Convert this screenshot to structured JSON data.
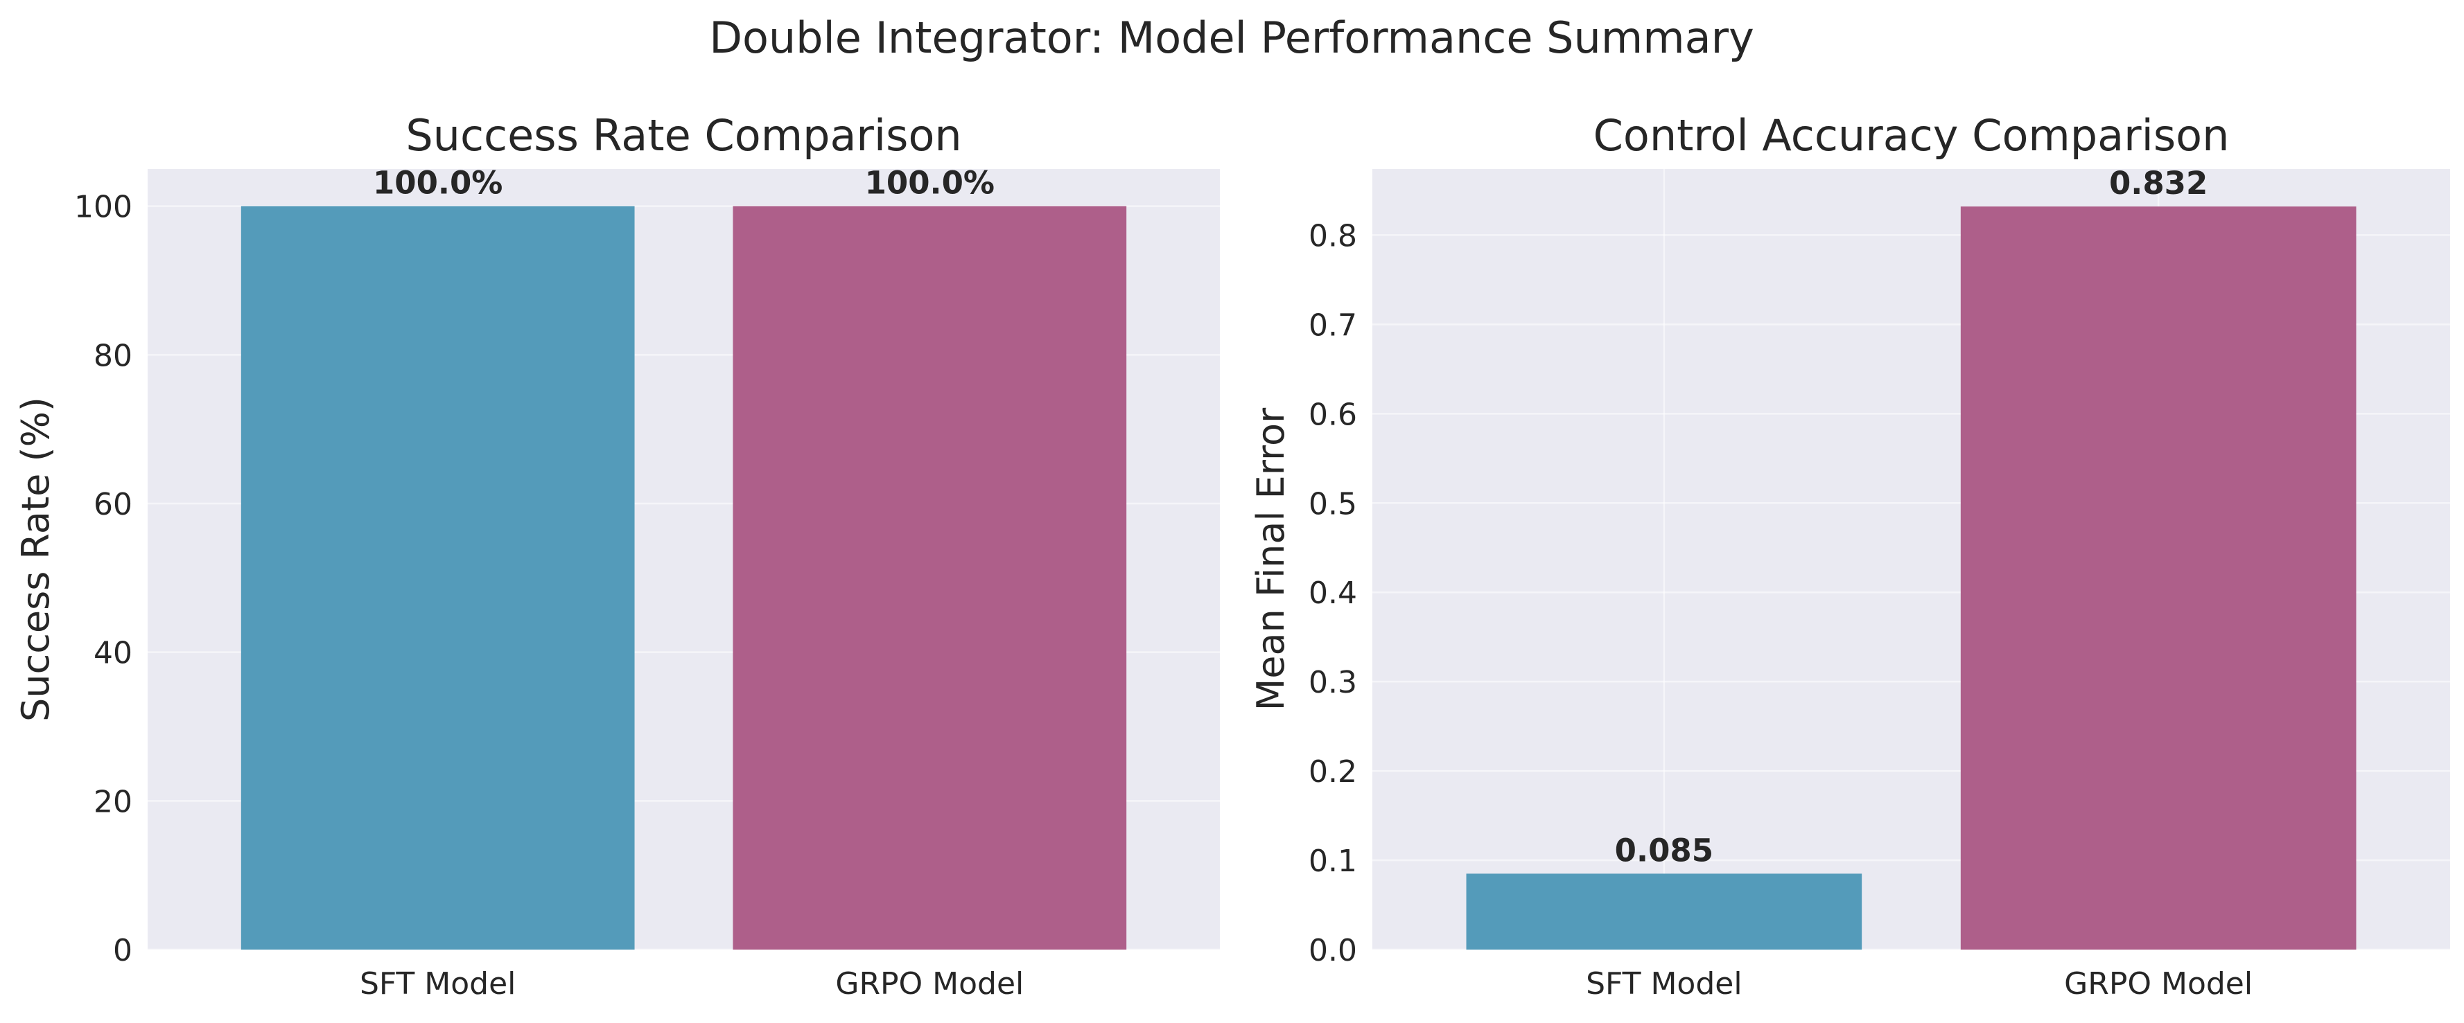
{
  "figure": {
    "title": "Double Integrator: Model Performance Summary"
  },
  "colors": {
    "background": "#ffffff",
    "plot_background": "#eaeaf2",
    "grid": "#ffffff",
    "sft": "#549bba",
    "grpo": "#ae5f8a",
    "text": "#262626"
  },
  "chart_data": [
    {
      "type": "bar",
      "title": "Success Rate Comparison",
      "xlabel": "",
      "ylabel": "Success Rate (%)",
      "categories": [
        "SFT Model",
        "GRPO Model"
      ],
      "values": [
        100.0,
        100.0
      ],
      "value_labels": [
        "100.0%",
        "100.0%"
      ],
      "bar_colors": [
        "#549bba",
        "#ae5f8a"
      ],
      "ylim": [
        0,
        105
      ],
      "yticks": [
        0,
        20,
        40,
        60,
        80,
        100
      ],
      "ytick_labels": [
        "0",
        "20",
        "40",
        "60",
        "80",
        "100"
      ],
      "grid": true,
      "show_x_grid": false
    },
    {
      "type": "bar",
      "title": "Control Accuracy Comparison",
      "xlabel": "",
      "ylabel": "Mean Final Error",
      "categories": [
        "SFT Model",
        "GRPO Model"
      ],
      "values": [
        0.085,
        0.832
      ],
      "value_labels": [
        "0.085",
        "0.832"
      ],
      "bar_colors": [
        "#549bba",
        "#ae5f8a"
      ],
      "ylim": [
        0,
        0.874
      ],
      "yticks": [
        0.0,
        0.1,
        0.2,
        0.3,
        0.4,
        0.5,
        0.6,
        0.7,
        0.8
      ],
      "ytick_labels": [
        "0.0",
        "0.1",
        "0.2",
        "0.3",
        "0.4",
        "0.5",
        "0.6",
        "0.7",
        "0.8"
      ],
      "grid": true,
      "show_x_grid": true
    }
  ]
}
